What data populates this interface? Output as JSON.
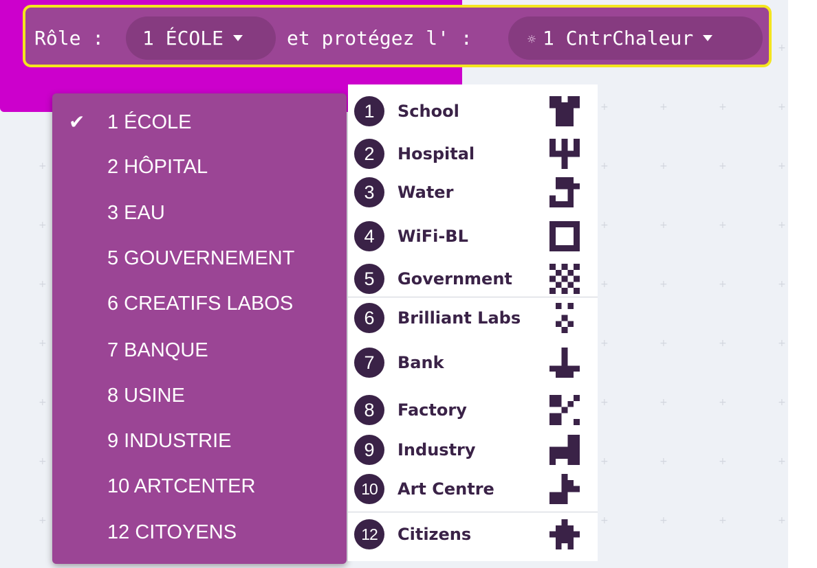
{
  "role_block": {
    "role_label": "Rôle :",
    "role_value": "1 ÉCOLE",
    "protect_label": "et protégez l' :",
    "protect_value": "1 CntrChaleur",
    "protect_icon": "sun-icon",
    "highlight_color": "#f4e51f",
    "block_color": "#9b4595"
  },
  "dropdown": {
    "selected": "1 ÉCOLE",
    "items": [
      {
        "label": "1 ÉCOLE"
      },
      {
        "label": "2 HÔPITAL"
      },
      {
        "label": "3 EAU"
      },
      {
        "label": "5 GOUVERNEMENT"
      },
      {
        "label": "6 CREATIFS LABOS"
      },
      {
        "label": "7 BANQUE"
      },
      {
        "label": "8 USINE"
      },
      {
        "label": "9 INDUSTRIE"
      },
      {
        "label": "10 ARTCENTER"
      },
      {
        "label": "12 CITOYENS"
      }
    ]
  },
  "legend": {
    "rows": [
      {
        "number": "1",
        "name": "School",
        "icon": "school-icon"
      },
      {
        "number": "2",
        "name": "Hospital",
        "icon": "hospital-icon"
      },
      {
        "number": "3",
        "name": "Water",
        "icon": "water-icon"
      },
      {
        "number": "4",
        "name": "WiFi-BL",
        "icon": "wifi-bl-icon"
      },
      {
        "number": "5",
        "name": "Government",
        "icon": "government-icon"
      },
      {
        "number": "6",
        "name": "Brilliant Labs",
        "icon": "brilliant-labs-icon"
      },
      {
        "number": "7",
        "name": "Bank",
        "icon": "bank-icon"
      },
      {
        "number": "8",
        "name": "Factory",
        "icon": "factory-icon"
      },
      {
        "number": "9",
        "name": "Industry",
        "icon": "industry-icon"
      },
      {
        "number": "10",
        "name": "Art Centre",
        "icon": "art-centre-icon"
      },
      {
        "number": "12",
        "name": "Citizens",
        "icon": "citizens-icon"
      }
    ]
  }
}
